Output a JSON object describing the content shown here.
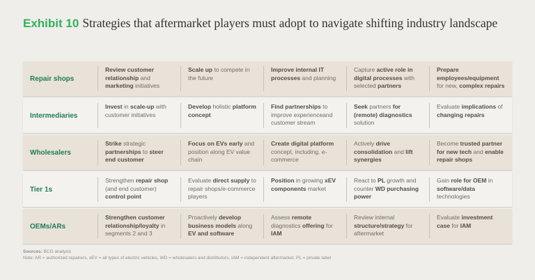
{
  "title": {
    "exhibit": "Exhibit 10",
    "text": "Strategies that aftermarket players must adopt to navigate shifting industry landscape"
  },
  "colors": {
    "page_background": "#f0eeeb",
    "row_beige": "#e9e2d8",
    "row_light": "#f4f2ef",
    "exhibit_green": "#2eb35a",
    "label_green": "#1f7b57",
    "body_text": "#6f6b64",
    "bold_text": "#514d46",
    "divider": "#c8c2b9"
  },
  "table": {
    "rows": [
      {
        "label": "Repair shops",
        "cells": [
          [
            {
              "t": "Review customer relationship",
              "b": true
            },
            {
              "t": " and ",
              "b": false
            },
            {
              "t": "marketing",
              "b": true
            },
            {
              "t": " initiatives",
              "b": false
            }
          ],
          [
            {
              "t": "Scale up",
              "b": true
            },
            {
              "t": " to compete in the future",
              "b": false
            }
          ],
          [
            {
              "t": "Improve internal IT processes",
              "b": true
            },
            {
              "t": " and planning",
              "b": false
            }
          ],
          [
            {
              "t": "Capture ",
              "b": false
            },
            {
              "t": "active role in digital processes",
              "b": true
            },
            {
              "t": " with selected ",
              "b": false
            },
            {
              "t": "partners",
              "b": true
            }
          ],
          [
            {
              "t": "Prepare employees/equipment",
              "b": true
            },
            {
              "t": " for new, ",
              "b": false
            },
            {
              "t": "complex repairs",
              "b": true
            }
          ]
        ]
      },
      {
        "label": "Intermediaries",
        "cells": [
          [
            {
              "t": "Invest",
              "b": true
            },
            {
              "t": " in ",
              "b": false
            },
            {
              "t": "scale-up",
              "b": true
            },
            {
              "t": " with customer initiatives",
              "b": false
            }
          ],
          [
            {
              "t": "Develop",
              "b": true
            },
            {
              "t": " holistic ",
              "b": false
            },
            {
              "t": "platform concept",
              "b": true
            }
          ],
          [
            {
              "t": "Find partnerships",
              "b": true
            },
            {
              "t": " to improve experienceand customer stream",
              "b": false
            }
          ],
          [
            {
              "t": "Seek",
              "b": true
            },
            {
              "t": " partners ",
              "b": false
            },
            {
              "t": "for (remote) diagnostics",
              "b": true
            },
            {
              "t": " solution",
              "b": false
            }
          ],
          [
            {
              "t": "Evaluate ",
              "b": false
            },
            {
              "t": "implications",
              "b": true
            },
            {
              "t": " of ",
              "b": false
            },
            {
              "t": "changing repairs",
              "b": true
            }
          ]
        ]
      },
      {
        "label": "Wholesalers",
        "cells": [
          [
            {
              "t": "Strike",
              "b": true
            },
            {
              "t": " strategic ",
              "b": false
            },
            {
              "t": "partnerships",
              "b": true
            },
            {
              "t": " to ",
              "b": false
            },
            {
              "t": "steer end customer",
              "b": true
            }
          ],
          [
            {
              "t": "Focus on EVs early",
              "b": true
            },
            {
              "t": " and position along EV value chain",
              "b": false
            }
          ],
          [
            {
              "t": "Create digital platform",
              "b": true
            },
            {
              "t": " concept, including. e-commerce",
              "b": false
            }
          ],
          [
            {
              "t": "Actively ",
              "b": false
            },
            {
              "t": "drive consolidation",
              "b": true
            },
            {
              "t": " and ",
              "b": false
            },
            {
              "t": "lift synergies",
              "b": true
            }
          ],
          [
            {
              "t": "Become ",
              "b": false
            },
            {
              "t": "trusted partner for new tech",
              "b": true
            },
            {
              "t": " and ",
              "b": false
            },
            {
              "t": "enable repair shops",
              "b": true
            }
          ]
        ]
      },
      {
        "label": "Tier 1s",
        "cells": [
          [
            {
              "t": "Strengthen ",
              "b": false
            },
            {
              "t": "repair shop",
              "b": true
            },
            {
              "t": " (and end customer) ",
              "b": false
            },
            {
              "t": "control point",
              "b": true
            }
          ],
          [
            {
              "t": "Evaluate ",
              "b": false
            },
            {
              "t": "direct supply",
              "b": true
            },
            {
              "t": " to repair shops/e-commerce players",
              "b": false
            }
          ],
          [
            {
              "t": "Position",
              "b": true
            },
            {
              "t": " in growing ",
              "b": false
            },
            {
              "t": "xEV components",
              "b": true
            },
            {
              "t": " market",
              "b": false
            }
          ],
          [
            {
              "t": "React to ",
              "b": false
            },
            {
              "t": "PL",
              "b": true
            },
            {
              "t": " growth and counter ",
              "b": false
            },
            {
              "t": "WD purchasing power",
              "b": true
            }
          ],
          [
            {
              "t": "Gain ",
              "b": false
            },
            {
              "t": "role for OEM",
              "b": true
            },
            {
              "t": " in ",
              "b": false
            },
            {
              "t": "software/data",
              "b": true
            },
            {
              "t": " technologies",
              "b": false
            }
          ]
        ]
      },
      {
        "label": "OEMs/ARs",
        "cells": [
          [
            {
              "t": "Strengthen customer relationship/loyalty",
              "b": true
            },
            {
              "t": " in segments 2 and 3",
              "b": false
            }
          ],
          [
            {
              "t": "Proactively ",
              "b": false
            },
            {
              "t": "develop business models",
              "b": true
            },
            {
              "t": " along ",
              "b": false
            },
            {
              "t": "EV and software",
              "b": true
            }
          ],
          [
            {
              "t": "Assess ",
              "b": false
            },
            {
              "t": "remote",
              "b": true
            },
            {
              "t": " diagnostics ",
              "b": false
            },
            {
              "t": "offering",
              "b": true
            },
            {
              "t": " for ",
              "b": false
            },
            {
              "t": "IAM",
              "b": true
            }
          ],
          [
            {
              "t": "Review internal ",
              "b": false
            },
            {
              "t": "structure/strategy",
              "b": true
            },
            {
              "t": " for aftermarket",
              "b": false
            }
          ],
          [
            {
              "t": "Evaluate ",
              "b": false
            },
            {
              "t": "investment case",
              "b": true
            },
            {
              "t": " for ",
              "b": false
            },
            {
              "t": "IAM",
              "b": true
            }
          ]
        ]
      }
    ]
  },
  "footer": {
    "sources_label": "Sources:",
    "sources_text": "BCG analysis",
    "note": "Note: AR = authorized repairers, xEV = all types of electric vehicles, WD = wholesalers and distributors, IAM = independent aftermarket, PL = private label"
  }
}
